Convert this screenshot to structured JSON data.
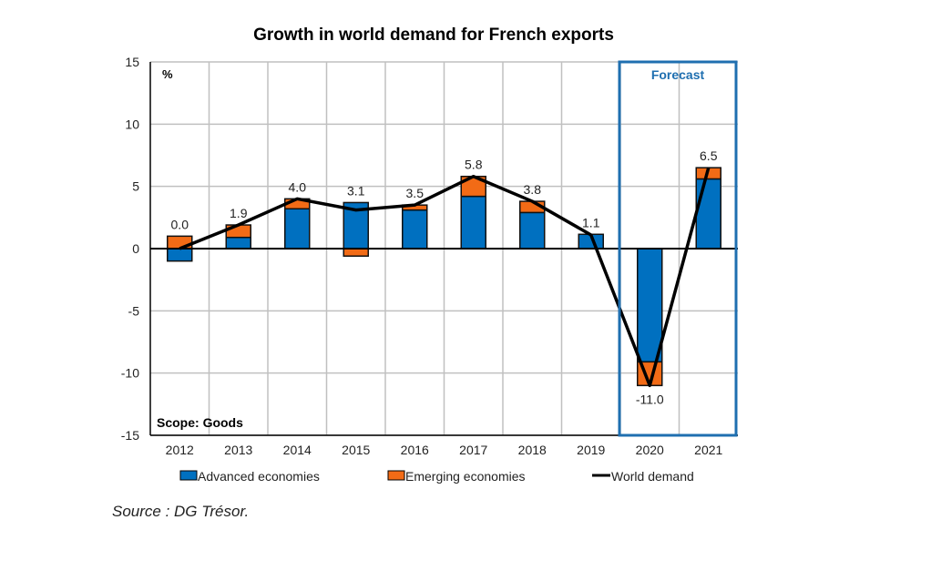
{
  "chart_data": {
    "type": "bar",
    "title": "Growth in world demand for French exports",
    "ylabel": "%",
    "categories": [
      "2012",
      "2013",
      "2014",
      "2015",
      "2016",
      "2017",
      "2018",
      "2019",
      "2020",
      "2021"
    ],
    "ylim": [
      -15,
      15
    ],
    "yticks": [
      15,
      10,
      5,
      0,
      -5,
      -10,
      -15
    ],
    "grid": true,
    "stacked": true,
    "series": [
      {
        "name": "Advanced economies",
        "kind": "bar",
        "color": "#0070C0",
        "values": [
          -1.0,
          0.9,
          3.2,
          3.7,
          3.1,
          4.2,
          2.9,
          1.15,
          -9.1,
          5.6
        ]
      },
      {
        "name": "Emerging economies",
        "kind": "bar",
        "color": "#F26B16",
        "values": [
          1.0,
          1.0,
          0.8,
          -0.6,
          0.4,
          1.6,
          0.9,
          0.0,
          -1.9,
          0.9
        ]
      },
      {
        "name": "World demand",
        "kind": "line",
        "color": "#000000",
        "values": [
          0.0,
          1.9,
          4.0,
          3.1,
          3.5,
          5.8,
          3.8,
          1.1,
          -11.0,
          6.5
        ]
      }
    ],
    "data_labels": [
      "0.0",
      "1.9",
      "4.0",
      "3.1",
      "3.5",
      "5.8",
      "3.8",
      "1.1",
      "-11.0",
      "6.5"
    ],
    "annotations": {
      "forecast": "Forecast",
      "scope": "Scope: Goods",
      "forecast_years": [
        "2020",
        "2021"
      ]
    },
    "legend_position": "bottom"
  },
  "source": "Source : DG Trésor."
}
